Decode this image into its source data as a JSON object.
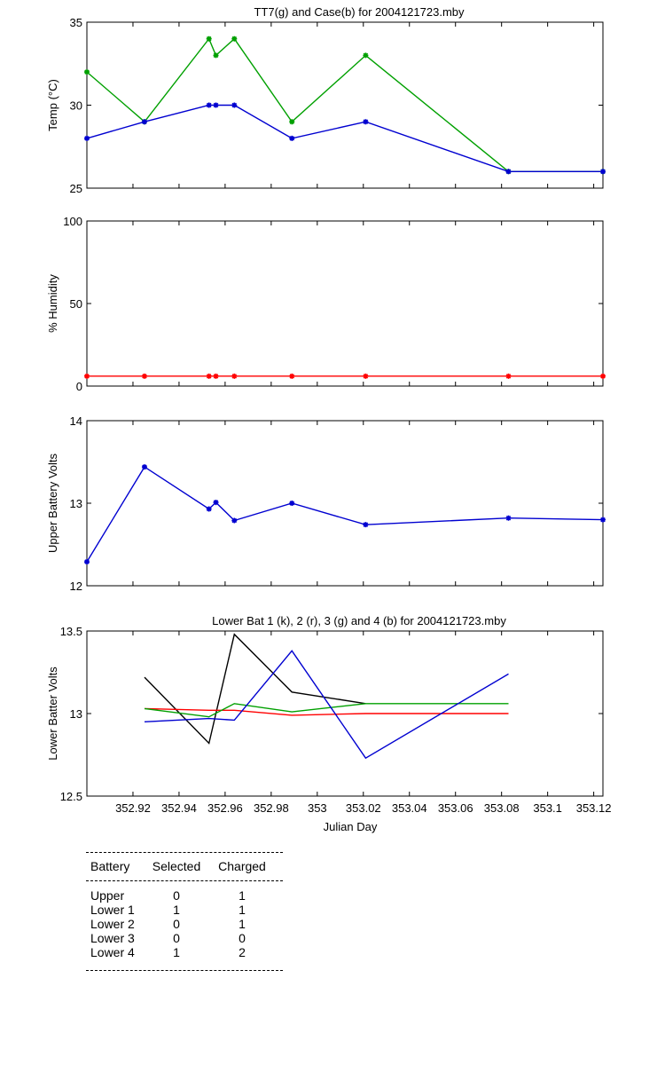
{
  "panels": [
    {
      "id": "temp",
      "title": "TT7(g) and Case(b) for 2004121723.mby",
      "ylabel": "Temp  (°C)",
      "ylim": [
        25,
        35
      ],
      "yticks": [
        "25",
        "30",
        "35"
      ]
    },
    {
      "id": "humidity",
      "title": "",
      "ylabel": "% Humidity",
      "ylim": [
        0,
        100
      ],
      "yticks": [
        "0",
        "50",
        "100"
      ]
    },
    {
      "id": "upper",
      "title": "",
      "ylabel": "Upper Battery Volts",
      "ylim": [
        12,
        14
      ],
      "yticks": [
        "12",
        "13",
        "14"
      ]
    },
    {
      "id": "lower",
      "title": "Lower Bat 1 (k), 2 (r), 3 (g) and 4 (b) for 2004121723.mby",
      "ylabel": "Lower Batter Volts",
      "ylim": [
        12.5,
        13.5
      ],
      "yticks": [
        "12.5",
        "13",
        "13.5"
      ]
    }
  ],
  "xaxis": {
    "label": "Julian Day",
    "range": [
      352.9,
      353.124
    ],
    "ticks": [
      "352.92",
      "352.94",
      "352.96",
      "352.98",
      "353",
      "353.02",
      "353.04",
      "353.06",
      "353.08",
      "353.1",
      "353.12"
    ]
  },
  "chart_data": [
    {
      "type": "line",
      "title": "TT7(g) and Case(b) for 2004121723.mby",
      "ylabel": "Temp  (°C)",
      "ylim": [
        25,
        35
      ],
      "grid": false,
      "series": [
        {
          "color": "#00a000",
          "marker": "*",
          "x": [
            352.9,
            352.925,
            352.953,
            352.956,
            352.964,
            352.989,
            353.021,
            353.083,
            353.124
          ],
          "y": [
            32,
            29,
            34,
            33,
            34,
            29,
            33,
            26,
            26
          ]
        },
        {
          "color": "#0000d0",
          "marker": "*",
          "x": [
            352.9,
            352.925,
            352.953,
            352.956,
            352.964,
            352.989,
            353.021,
            353.083,
            353.124
          ],
          "y": [
            28,
            29,
            30,
            30,
            30,
            28,
            29,
            26,
            26
          ]
        }
      ]
    },
    {
      "type": "line",
      "ylabel": "% Humidity",
      "ylim": [
        0,
        100
      ],
      "grid": false,
      "series": [
        {
          "color": "#ff0000",
          "marker": "*",
          "x": [
            352.9,
            352.925,
            352.953,
            352.956,
            352.964,
            352.989,
            353.021,
            353.083,
            353.124
          ],
          "y": [
            6,
            6,
            6,
            6,
            6,
            6,
            6,
            6,
            6
          ]
        }
      ]
    },
    {
      "type": "line",
      "ylabel": "Upper Battery Volts",
      "ylim": [
        12,
        14
      ],
      "grid": false,
      "series": [
        {
          "color": "#0000d0",
          "marker": "*",
          "x": [
            352.9,
            352.925,
            352.953,
            352.956,
            352.964,
            352.989,
            353.021,
            353.083,
            353.124
          ],
          "y": [
            12.29,
            13.44,
            12.93,
            13.01,
            12.79,
            13.0,
            12.74,
            12.82,
            12.8
          ]
        }
      ]
    },
    {
      "type": "line",
      "title": "Lower Bat 1 (k), 2 (r), 3 (g) and 4 (b) for 2004121723.mby",
      "xlabel": "Julian Day",
      "ylabel": "Lower Batter Volts",
      "ylim": [
        12.5,
        13.5
      ],
      "grid": false,
      "series": [
        {
          "color": "#000000",
          "x": [
            352.925,
            352.953,
            352.964,
            352.989,
            353.021
          ],
          "y": [
            13.22,
            12.82,
            13.48,
            13.13,
            13.06
          ]
        },
        {
          "color": "#ff0000",
          "x": [
            352.925,
            352.953,
            352.964,
            352.989,
            353.021,
            353.083
          ],
          "y": [
            13.03,
            13.02,
            13.02,
            12.99,
            13.0,
            13.0
          ]
        },
        {
          "color": "#00a000",
          "x": [
            352.925,
            352.953,
            352.964,
            352.989,
            353.021,
            353.083
          ],
          "y": [
            13.03,
            12.98,
            13.06,
            13.01,
            13.06,
            13.06
          ]
        },
        {
          "color": "#0000d0",
          "x": [
            352.925,
            352.953,
            352.964,
            352.989,
            353.021,
            353.083
          ],
          "y": [
            12.95,
            12.97,
            12.96,
            13.38,
            12.73,
            13.24
          ]
        }
      ]
    }
  ],
  "battery_table": {
    "headers": [
      "Battery",
      "Selected",
      "Charged"
    ],
    "rows": [
      [
        "Upper",
        "0",
        "1"
      ],
      [
        "Lower 1",
        "1",
        "1"
      ],
      [
        "Lower 2",
        "0",
        "1"
      ],
      [
        "Lower 3",
        "0",
        "0"
      ],
      [
        "Lower 4",
        "1",
        "2"
      ]
    ]
  }
}
